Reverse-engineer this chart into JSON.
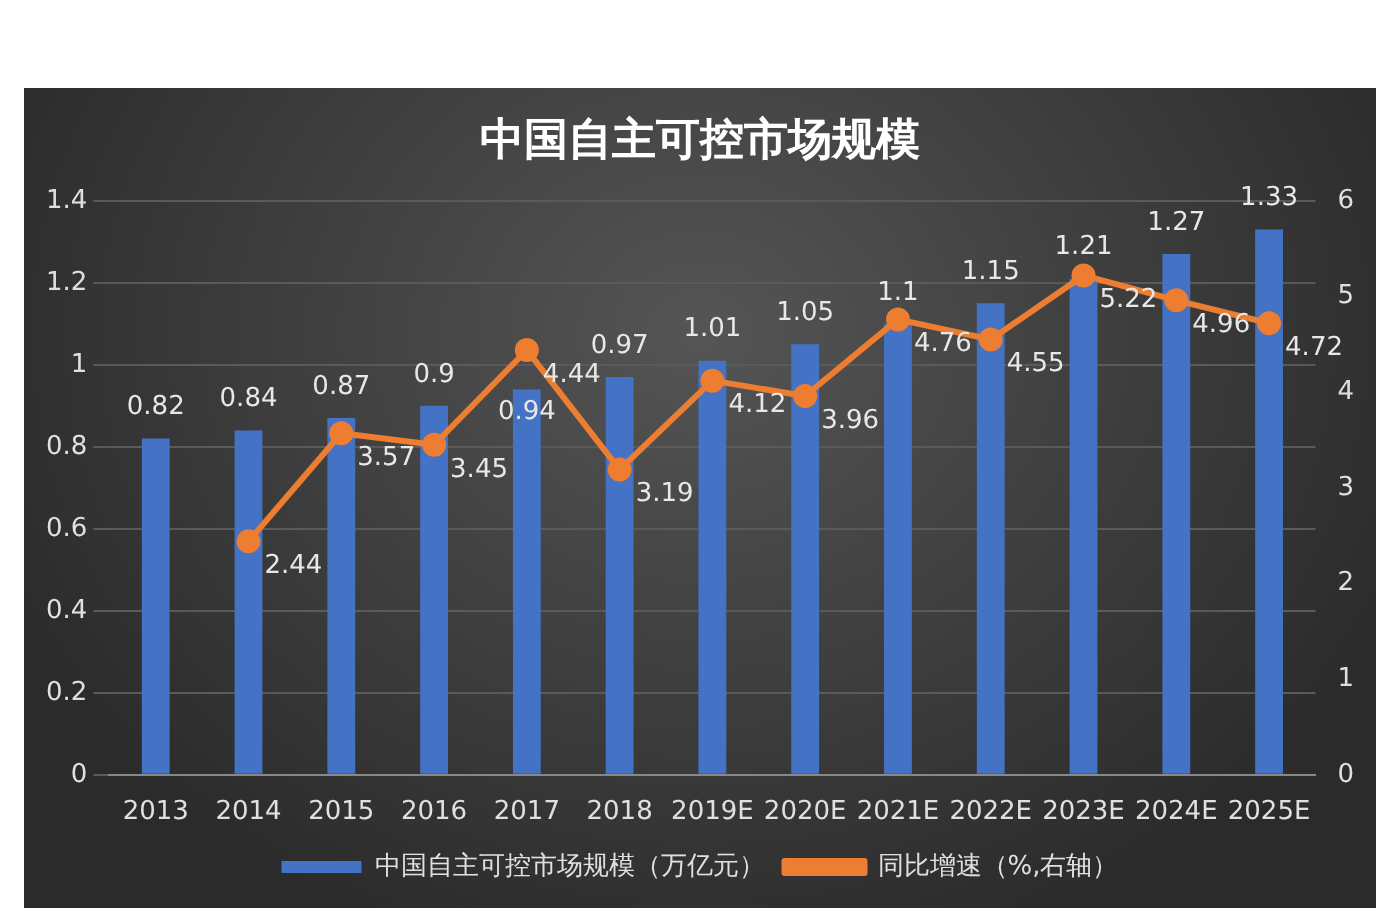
{
  "chart_data": {
    "type": "bar",
    "title": "中国自主可控市场规模",
    "categories": [
      "2013",
      "2014",
      "2015",
      "2016",
      "2017",
      "2018",
      "2019E",
      "2020E",
      "2021E",
      "2022E",
      "2023E",
      "2024E",
      "2025E"
    ],
    "series": [
      {
        "name": "中国自主可控市场规模（万亿元）",
        "color": "#4472c4",
        "values": [
          0.82,
          0.84,
          0.87,
          0.9,
          0.94,
          0.97,
          1.01,
          1.05,
          1.1,
          1.15,
          1.21,
          1.27,
          1.33
        ]
      },
      {
        "name": "同比增速（%,右轴）",
        "type": "line",
        "axis": "y2",
        "color": "#ed7d31",
        "values": [
          null,
          2.44,
          3.57,
          3.45,
          4.44,
          3.19,
          4.12,
          3.96,
          4.76,
          4.55,
          5.22,
          4.96,
          4.72
        ]
      }
    ],
    "ylim": [
      0,
      1.4
    ],
    "yticks": [
      0,
      0.2,
      0.4,
      0.6,
      0.8,
      1,
      1.2,
      1.4
    ],
    "y2lim": [
      0,
      6
    ],
    "y2ticks": [
      0,
      1,
      2,
      3,
      4,
      5,
      6
    ],
    "grid": "y",
    "legend": "bottom",
    "marker": "circle",
    "line_style": "solid",
    "data_labels": true
  }
}
